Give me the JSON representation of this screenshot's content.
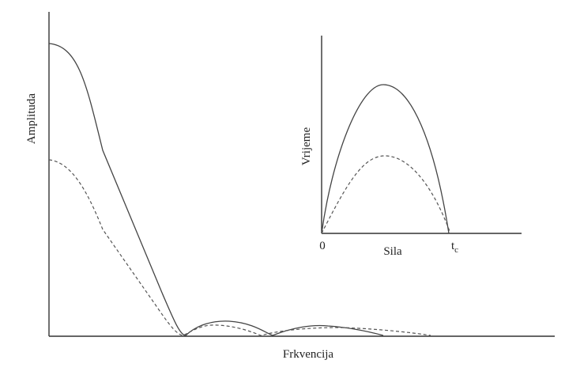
{
  "main": {
    "y_label": "Amplituda",
    "x_label": "Frkvencija"
  },
  "inset": {
    "y_label": "Vrijeme",
    "x_label": "Sila",
    "origin_label": "0",
    "end_label": {
      "base": "t",
      "sub": "c"
    }
  }
}
